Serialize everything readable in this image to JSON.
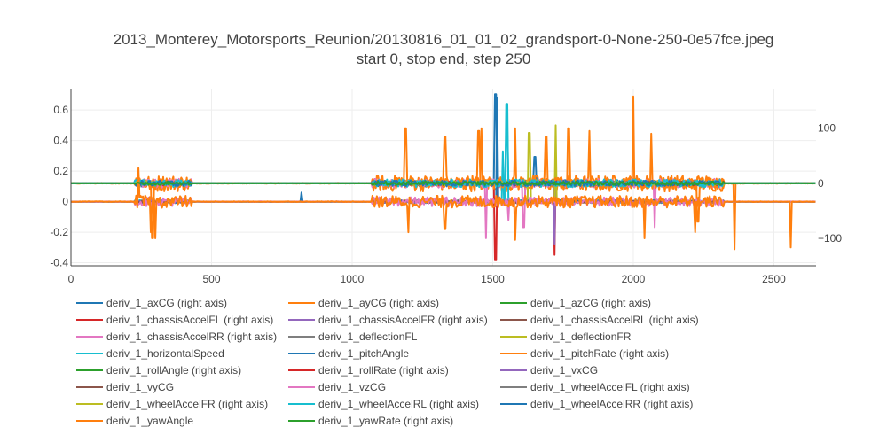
{
  "chart_data": {
    "type": "line",
    "title": "2013_Monterey_Motorsports_Reunion/20130816_01_01_02_grandsport-0-None-250-0e57fce.jpeg",
    "subtitle": "start 0, stop end, step 250",
    "xlim": [
      0,
      2650
    ],
    "ylim_left": [
      -0.42,
      0.74
    ],
    "ylim_right": [
      -150,
      172
    ],
    "x_ticks": [
      0,
      500,
      1000,
      1500,
      2000,
      2500
    ],
    "y_ticks_left": [
      -0.4,
      -0.2,
      0,
      0.2,
      0.4,
      0.6
    ],
    "y_ticks_right": [
      -100,
      0,
      100
    ],
    "grid": true,
    "legend_position": "bottom",
    "series": [
      {
        "name": "deriv_1_axCG (right axis)",
        "color": "#1f77b4",
        "axis": "right",
        "amp": 6,
        "spikes": [
          [
            1510,
            162
          ],
          [
            1650,
            48
          ]
        ]
      },
      {
        "name": "deriv_1_ayCG (right axis)",
        "color": "#ff7f0e",
        "axis": "right",
        "amp": 15,
        "spikes": [
          [
            1190,
            100
          ],
          [
            1330,
            85
          ],
          [
            1450,
            95
          ],
          [
            1580,
            100
          ],
          [
            1690,
            85
          ],
          [
            1845,
            95
          ],
          [
            2000,
            158
          ],
          [
            2065,
            90
          ],
          [
            2360,
            -120
          ],
          [
            290,
            -100
          ]
        ]
      },
      {
        "name": "deriv_1_azCG (right axis)",
        "color": "#2ca02c",
        "axis": "right",
        "amp": 2,
        "spikes": []
      },
      {
        "name": "deriv_1_chassisAccelFL (right axis)",
        "color": "#d62728",
        "axis": "right",
        "amp": 4,
        "spikes": [
          [
            1720,
            -130
          ],
          [
            1510,
            -140
          ]
        ]
      },
      {
        "name": "deriv_1_chassisAccelFR (right axis)",
        "color": "#9467bd",
        "axis": "right",
        "amp": 4,
        "spikes": [
          [
            1720,
            -110
          ]
        ]
      },
      {
        "name": "deriv_1_chassisAccelRL (right axis)",
        "color": "#8c564b",
        "axis": "right",
        "amp": 3,
        "spikes": []
      },
      {
        "name": "deriv_1_chassisAccelRR (right axis)",
        "color": "#e377c2",
        "axis": "right",
        "amp": 8,
        "spikes": [
          [
            1475,
            -100
          ],
          [
            1610,
            -80
          ],
          [
            2075,
            -80
          ]
        ]
      },
      {
        "name": "deriv_1_deflectionFL",
        "color": "#7f7f7f",
        "axis": "left",
        "amp": 0.01,
        "spikes": []
      },
      {
        "name": "deriv_1_deflectionFR",
        "color": "#bcbd22",
        "axis": "left",
        "amp": 0.01,
        "spikes": [
          [
            1725,
            0.5
          ],
          [
            1630,
            0.45
          ]
        ]
      },
      {
        "name": "deriv_1_horizontalSpeed",
        "color": "#17becf",
        "axis": "left",
        "amp": 0.01,
        "spikes": [
          [
            1550,
            0.64
          ],
          [
            1535,
            0.33
          ]
        ]
      },
      {
        "name": "deriv_1_pitchAngle",
        "color": "#1f77b4",
        "axis": "left",
        "amp": 0.01,
        "spikes": [
          [
            1515,
            0.68
          ],
          [
            820,
            0.06
          ]
        ]
      },
      {
        "name": "deriv_1_pitchRate (right axis)",
        "color": "#ff7f0e",
        "axis": "right",
        "amp": 10,
        "spikes": [
          [
            1460,
            100
          ],
          [
            1770,
            100
          ],
          [
            2230,
            -70
          ]
        ]
      },
      {
        "name": "deriv_1_rollAngle (right axis)",
        "color": "#2ca02c",
        "axis": "right",
        "amp": 3,
        "spikes": []
      },
      {
        "name": "deriv_1_rollRate (right axis)",
        "color": "#d62728",
        "axis": "right",
        "amp": 4,
        "spikes": []
      },
      {
        "name": "deriv_1_vxCG",
        "color": "#9467bd",
        "axis": "left",
        "amp": 0.008,
        "spikes": []
      },
      {
        "name": "deriv_1_vyCG",
        "color": "#8c564b",
        "axis": "left",
        "amp": 0.008,
        "spikes": []
      },
      {
        "name": "deriv_1_vzCG",
        "color": "#e377c2",
        "axis": "left",
        "amp": 0.03,
        "spikes": [
          [
            1555,
            -0.12
          ]
        ]
      },
      {
        "name": "deriv_1_wheelAccelFL (right axis)",
        "color": "#7f7f7f",
        "axis": "right",
        "amp": 4,
        "spikes": []
      },
      {
        "name": "deriv_1_wheelAccelFR (right axis)",
        "color": "#bcbd22",
        "axis": "right",
        "amp": 4,
        "spikes": []
      },
      {
        "name": "deriv_1_wheelAccelRL (right axis)",
        "color": "#17becf",
        "axis": "right",
        "amp": 7,
        "spikes": [
          [
            1550,
            95
          ]
        ]
      },
      {
        "name": "deriv_1_wheelAccelRR (right axis)",
        "color": "#1f77b4",
        "axis": "right",
        "amp": 5,
        "spikes": []
      },
      {
        "name": "deriv_1_yawAngle",
        "color": "#ff7f0e",
        "axis": "left",
        "amp": 0.04,
        "spikes": [
          [
            240,
            0.22
          ],
          [
            300,
            -0.24
          ],
          [
            285,
            -0.2
          ],
          [
            1200,
            -0.2
          ],
          [
            1330,
            -0.18
          ],
          [
            1580,
            -0.25
          ],
          [
            2040,
            -0.24
          ],
          [
            2220,
            -0.2
          ],
          [
            2560,
            -0.3
          ]
        ]
      },
      {
        "name": "deriv_1_yawRate (right axis)",
        "color": "#2ca02c",
        "axis": "right",
        "amp": 3,
        "spikes": []
      }
    ],
    "activity_segments": [
      [
        225,
        430
      ],
      [
        1070,
        2320
      ]
    ],
    "x_max_data": 2650
  }
}
